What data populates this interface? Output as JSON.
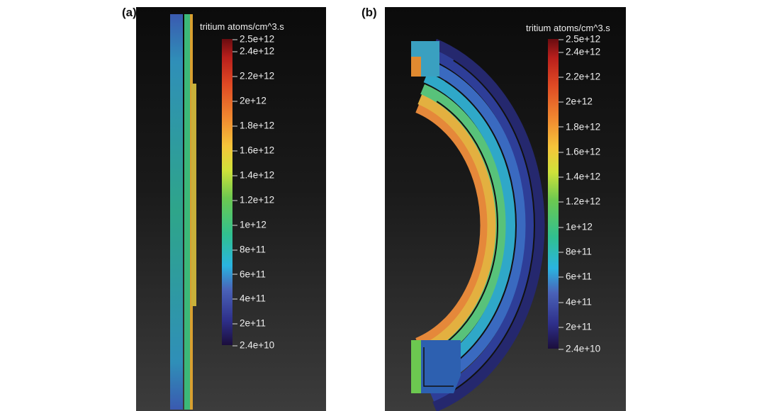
{
  "panels": [
    {
      "label": "(a)",
      "colorbar_title": "tritium atoms/cm^3.s"
    },
    {
      "label": "(b)",
      "colorbar_title": "tritium atoms/cm^3.s"
    }
  ],
  "chart_data": [
    {
      "type": "heatmap",
      "title": "(a)",
      "colorbar_label": "tritium atoms/cm^3.s",
      "range": [
        24000000000.0,
        2500000000000.0
      ],
      "colorbar_ticks": [
        {
          "label": "2.5e+12",
          "value": 2500000000000.0
        },
        {
          "label": "2.4e+12",
          "value": 2400000000000.0
        },
        {
          "label": "2.2e+12",
          "value": 2200000000000.0
        },
        {
          "label": "2e+12",
          "value": 2000000000000.0
        },
        {
          "label": "1.8e+12",
          "value": 1800000000000.0
        },
        {
          "label": "1.6e+12",
          "value": 1600000000000.0
        },
        {
          "label": "1.4e+12",
          "value": 1400000000000.0
        },
        {
          "label": "1.2e+12",
          "value": 1200000000000.0
        },
        {
          "label": "1e+12",
          "value": 1000000000000.0
        },
        {
          "label": "8e+11",
          "value": 800000000000.0
        },
        {
          "label": "6e+11",
          "value": 600000000000.0
        },
        {
          "label": "4e+11",
          "value": 400000000000.0
        },
        {
          "label": "2e+11",
          "value": 200000000000.0
        },
        {
          "label": "2.4e+10",
          "value": 24000000000.0
        }
      ]
    },
    {
      "type": "heatmap",
      "title": "(b)",
      "colorbar_label": "tritium atoms/cm^3.s",
      "range": [
        24000000000.0,
        2500000000000.0
      ],
      "colorbar_ticks": [
        {
          "label": "2.5e+12",
          "value": 2500000000000.0
        },
        {
          "label": "2.4e+12",
          "value": 2400000000000.0
        },
        {
          "label": "2.2e+12",
          "value": 2200000000000.0
        },
        {
          "label": "2e+12",
          "value": 2000000000000.0
        },
        {
          "label": "1.8e+12",
          "value": 1800000000000.0
        },
        {
          "label": "1.6e+12",
          "value": 1600000000000.0
        },
        {
          "label": "1.4e+12",
          "value": 1400000000000.0
        },
        {
          "label": "1.2e+12",
          "value": 1200000000000.0
        },
        {
          "label": "1e+12",
          "value": 1000000000000.0
        },
        {
          "label": "8e+11",
          "value": 800000000000.0
        },
        {
          "label": "6e+11",
          "value": 600000000000.0
        },
        {
          "label": "4e+11",
          "value": 400000000000.0
        },
        {
          "label": "2e+11",
          "value": 200000000000.0
        },
        {
          "label": "2.4e+10",
          "value": 24000000000.0
        }
      ]
    }
  ]
}
